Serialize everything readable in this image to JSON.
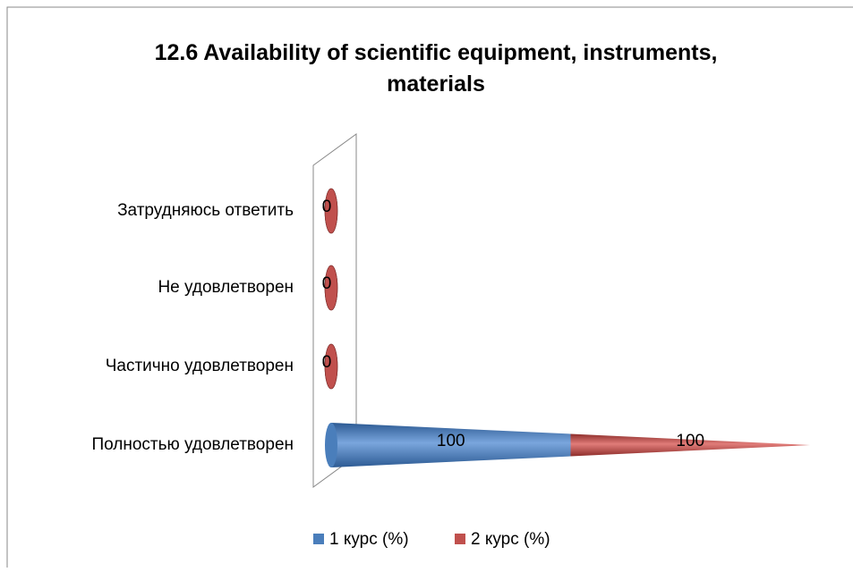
{
  "chart_data": {
    "type": "cone-bar-stacked",
    "title": "12.6 Availability of scientific equipment, instruments, materials",
    "categories": [
      "Полностью удовлетворен",
      "Частично удовлетворен",
      "Не удовлетворен",
      "Затрудняюсь ответить"
    ],
    "series": [
      {
        "name": "1 курс (%)",
        "color": "#4a7ebb",
        "values": [
          100,
          0,
          0,
          0
        ]
      },
      {
        "name": "2 курс (%)",
        "color": "#c0504d",
        "values": [
          100,
          0,
          0,
          0
        ]
      }
    ],
    "legend": "bottom"
  }
}
